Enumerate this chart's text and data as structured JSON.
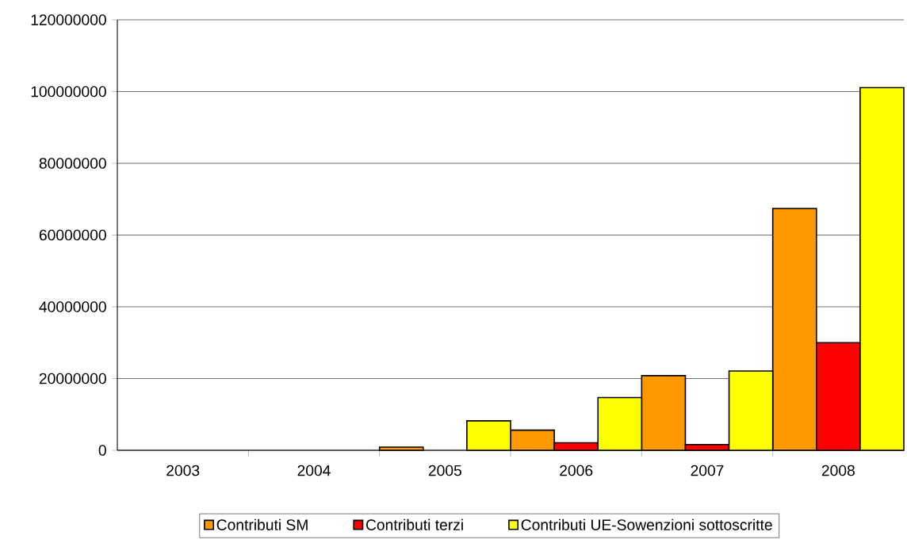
{
  "chart_data": {
    "type": "bar",
    "categories": [
      "2003",
      "2004",
      "2005",
      "2006",
      "2007",
      "2008"
    ],
    "series": [
      {
        "name": "Contributi SM",
        "color": "#ff9900",
        "values": [
          null,
          null,
          900000,
          5600000,
          20800000,
          67400000
        ]
      },
      {
        "name": "Contributi terzi",
        "color": "#ff0000",
        "values": [
          null,
          null,
          null,
          2100000,
          1600000,
          30000000
        ]
      },
      {
        "name": "Contributi UE-Sowenzioni sottoscritte",
        "color": "#ffff00",
        "values": [
          null,
          null,
          8200000,
          14700000,
          22100000,
          101100000
        ]
      }
    ],
    "ylim": [
      0,
      120000000
    ],
    "yticks": [
      0,
      20000000,
      40000000,
      60000000,
      80000000,
      100000000,
      120000000
    ],
    "grid": "y",
    "legend": "bottom"
  }
}
